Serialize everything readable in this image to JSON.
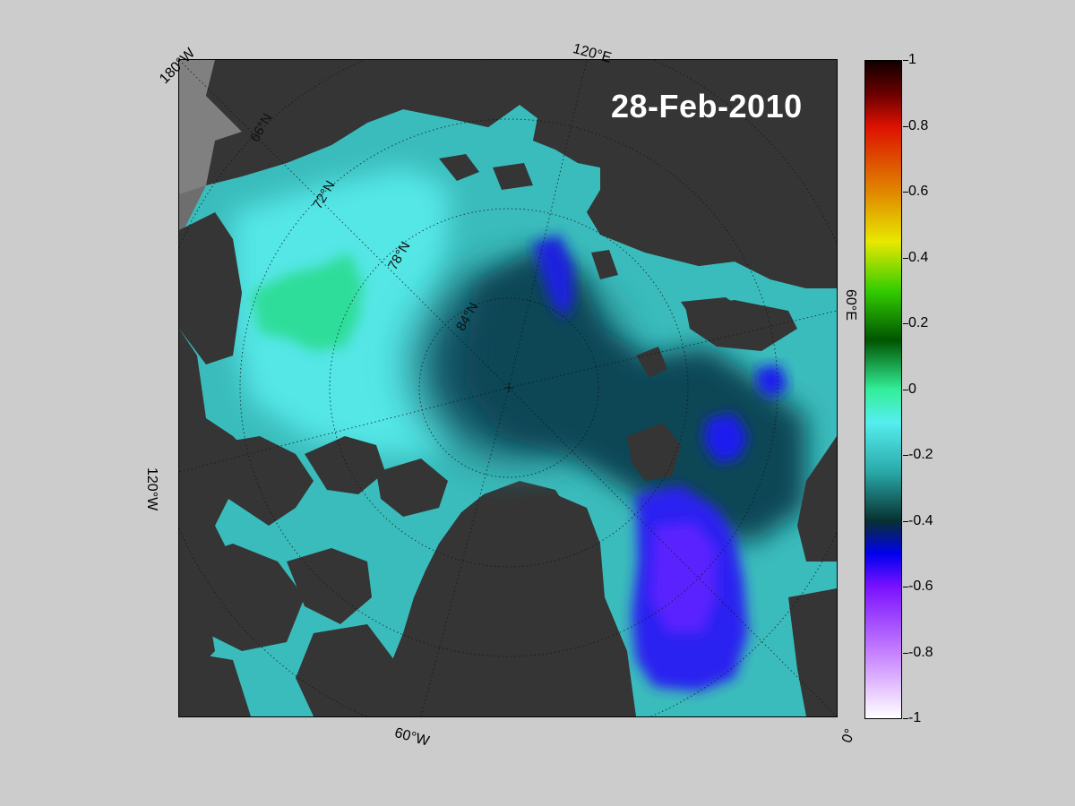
{
  "date_label": "28-Feb-2010",
  "longitude_labels": {
    "w180": "180°W",
    "e120": "120°E",
    "e60": "60°E",
    "w120": "120°W",
    "w60": "60°W",
    "zero": "0°"
  },
  "latitude_labels": {
    "n66": "66°N",
    "n72": "72°N",
    "n78": "78°N",
    "n84": "84°N"
  },
  "colorbar": {
    "min": -1,
    "max": 1,
    "ticks": [
      "1",
      "0.8",
      "0.6",
      "0.4",
      "0.2",
      "0",
      "-0.2",
      "-0.4",
      "-0.6",
      "-0.8",
      "-1"
    ],
    "tick_values": [
      1,
      0.8,
      0.6,
      0.4,
      0.2,
      0,
      -0.2,
      -0.4,
      -0.6,
      -0.8,
      -1
    ],
    "colors": {
      "stop_1": "#110000",
      "stop_0_9": "#6a0000",
      "stop_0_8": "#dd1100",
      "stop_0_6": "#e08800",
      "stop_0_45": "#e8e800",
      "stop_0_3": "#33cc00",
      "stop_0_15": "#005500",
      "stop_0": "#33ee99",
      "stop_m0_1": "#55eeee",
      "stop_m0_25": "#2aa9a9",
      "stop_m0_4": "#083030",
      "stop_m0_5": "#0000ee",
      "stop_m0_6": "#7a11ff",
      "stop_m0_8": "#c680ff",
      "stop_m1": "#ffffff"
    }
  },
  "map_colors": {
    "background": "#cccccc",
    "land": "#353535",
    "coast_shelf": "#808080",
    "ocean_light": "#48d3d3",
    "ocean_mid": "#2a9a9a",
    "ocean_dark": "#0b4a5a",
    "anomaly_green": "#2fdd99",
    "anomaly_blue": "#1a1aee",
    "anomaly_violet": "#4422ff",
    "grid_line": "#111111"
  }
}
